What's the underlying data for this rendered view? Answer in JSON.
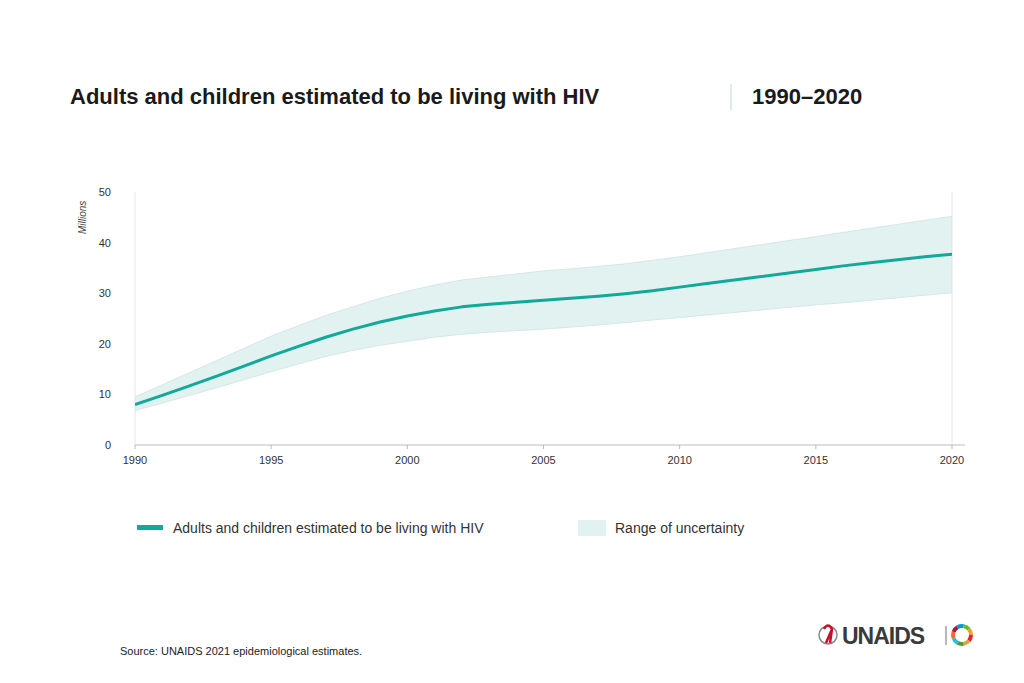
{
  "chart_data": {
    "type": "line",
    "title": "Adults and children estimated to be living with HIV",
    "subtitle": "1990–2020",
    "y_label": "Millions",
    "annotations": [
      "Source: UNAIDS 2021 epidemiological estimates.",
      "UNAIDS"
    ],
    "x": [
      1990,
      1991,
      1992,
      1993,
      1994,
      1995,
      1996,
      1997,
      1998,
      1999,
      2000,
      2001,
      2002,
      2003,
      2004,
      2005,
      2006,
      2007,
      2008,
      2009,
      2010,
      2011,
      2012,
      2013,
      2014,
      2015,
      2016,
      2017,
      2018,
      2019,
      2020
    ],
    "series": [
      {
        "name": "Adults and children estimated to be living with HIV",
        "color": "#12a89a",
        "values": [
          8.0,
          9.8,
          11.7,
          13.6,
          15.6,
          17.6,
          19.5,
          21.3,
          22.9,
          24.3,
          25.5,
          26.5,
          27.3,
          27.8,
          28.2,
          28.6,
          29.0,
          29.4,
          29.9,
          30.5,
          31.2,
          31.9,
          32.6,
          33.3,
          34.0,
          34.7,
          35.4,
          36.0,
          36.6,
          37.2,
          37.7
        ]
      },
      {
        "name": "Range of uncertainty",
        "type": "area",
        "color": "#e2f2f1",
        "low": [
          6.8,
          8.3,
          9.8,
          11.3,
          12.9,
          14.5,
          16.0,
          17.5,
          18.7,
          19.7,
          20.5,
          21.3,
          21.9,
          22.3,
          22.6,
          22.9,
          23.3,
          23.7,
          24.2,
          24.7,
          25.2,
          25.7,
          26.2,
          26.7,
          27.2,
          27.7,
          28.1,
          28.6,
          29.1,
          29.6,
          30.1
        ],
        "high": [
          9.5,
          11.9,
          14.3,
          16.7,
          19.1,
          21.5,
          23.6,
          25.6,
          27.3,
          29.0,
          30.4,
          31.6,
          32.6,
          33.2,
          33.8,
          34.4,
          34.8,
          35.3,
          35.8,
          36.5,
          37.2,
          38.0,
          38.8,
          39.6,
          40.4,
          41.2,
          42.0,
          42.8,
          43.6,
          44.4,
          45.2
        ]
      }
    ],
    "xlim": [
      1990,
      2020
    ],
    "xticks": [
      1990,
      1995,
      2000,
      2005,
      2010,
      2015,
      2020
    ],
    "ylim": [
      0,
      50
    ],
    "yticks": [
      0,
      10,
      20,
      30,
      40,
      50
    ],
    "grid": false,
    "legend": "bottom"
  }
}
